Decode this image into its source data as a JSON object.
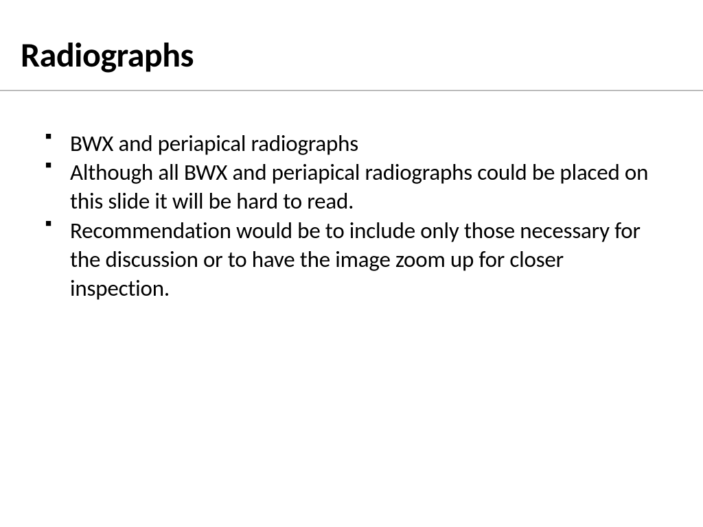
{
  "slide": {
    "title": "Radiographs",
    "title_fontsize": 50,
    "title_fontweight": 700,
    "title_color": "#000000",
    "divider_color": "#a6a6a6",
    "background_color": "#ffffff",
    "body_fontsize": 33,
    "body_color": "#000000",
    "bullet_marker": "■",
    "bullets": [
      "BWX and periapical radiographs",
      "Although all BWX and periapical radiographs could be placed on this slide it will be hard to read.",
      "Recommendation would be to include only those necessary for the discussion or to have the image zoom up for closer inspection."
    ]
  }
}
